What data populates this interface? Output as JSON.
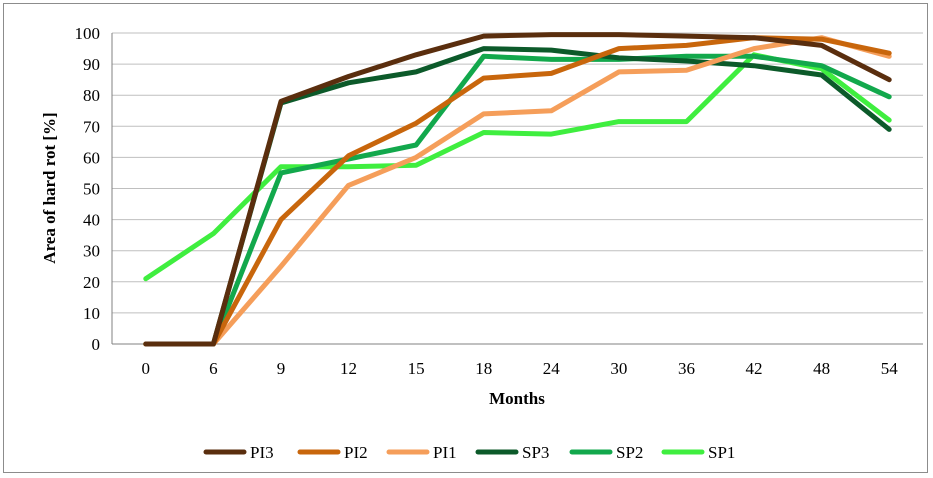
{
  "chart_data": {
    "type": "line",
    "title": "",
    "xlabel": "Months",
    "ylabel": "Area of hard rot [%]",
    "ylim": [
      0,
      100
    ],
    "yticks": [
      "0",
      "10",
      "20",
      "30",
      "40",
      "50",
      "60",
      "70",
      "80",
      "90",
      "100"
    ],
    "categories": [
      "0",
      "6",
      "9",
      "12",
      "15",
      "18",
      "24",
      "30",
      "36",
      "42",
      "48",
      "54"
    ],
    "grid": "horizontal",
    "legend_position": "bottom",
    "series": [
      {
        "name": "PI3",
        "color": "#5a2e0e",
        "values": [
          0,
          0,
          78,
          86,
          93,
          99,
          99.5,
          99.5,
          99,
          98.5,
          96,
          85
        ]
      },
      {
        "name": "PI2",
        "color": "#c8660c",
        "values": [
          0,
          0,
          40,
          60.5,
          71,
          85.5,
          87,
          95,
          96,
          98.5,
          98,
          93.5
        ]
      },
      {
        "name": "PI1",
        "color": "#f59e5a",
        "values": [
          0,
          0,
          25,
          51,
          60,
          74,
          75,
          87.5,
          88,
          95,
          98.5,
          92.5
        ]
      },
      {
        "name": "SP3",
        "color": "#0c5a2a",
        "values": [
          0,
          0,
          77.5,
          84,
          87.5,
          95,
          94.5,
          92,
          91,
          89.5,
          86.5,
          69
        ]
      },
      {
        "name": "SP2",
        "color": "#12a84c",
        "values": [
          0,
          0,
          55,
          59.5,
          64,
          92.5,
          91.5,
          91.5,
          92.5,
          92.5,
          89.5,
          79.5
        ]
      },
      {
        "name": "SP1",
        "color": "#3fee3f",
        "values": [
          21,
          35.5,
          57,
          57,
          57.5,
          68,
          67.5,
          71.5,
          71.5,
          93,
          88.5,
          72
        ]
      }
    ]
  }
}
